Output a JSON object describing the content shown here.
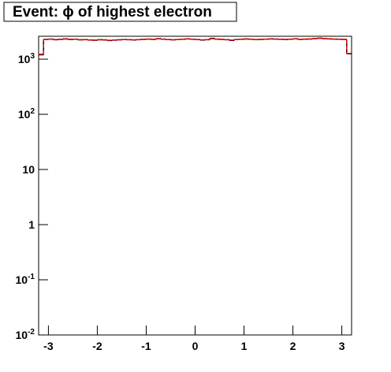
{
  "chart_data": {
    "type": "histogram",
    "title": "Event: ϕ of highest electron",
    "bins": [
      -3.2,
      -3.1,
      -3.0,
      -2.9,
      -2.8,
      -2.7,
      -2.6,
      -2.5,
      -2.4,
      -2.3,
      -2.2,
      -2.1,
      -2.0,
      -1.9,
      -1.8,
      -1.7,
      -1.6,
      -1.5,
      -1.4,
      -1.3,
      -1.2,
      -1.1,
      -1.0,
      -0.9,
      -0.8,
      -0.7,
      -0.6,
      -0.5,
      -0.4,
      -0.3,
      -0.2,
      -0.1,
      0.0,
      0.1,
      0.2,
      0.3,
      0.4,
      0.5,
      0.6,
      0.7,
      0.8,
      0.9,
      1.0,
      1.1,
      1.2,
      1.3,
      1.4,
      1.5,
      1.6,
      1.7,
      1.8,
      1.9,
      2.0,
      2.1,
      2.2,
      2.3,
      2.4,
      2.5,
      2.6,
      2.7,
      2.8,
      2.9,
      3.0,
      3.1,
      3.2
    ],
    "series": [
      {
        "color": "#000000",
        "dashed": false,
        "values": [
          1200,
          2280,
          2310,
          2250,
          2290,
          2330,
          2270,
          2300,
          2240,
          2260,
          2220,
          2200,
          2250,
          2230,
          2180,
          2210,
          2240,
          2270,
          2250,
          2230,
          2260,
          2290,
          2310,
          2280,
          2350,
          2300,
          2260,
          2240,
          2270,
          2300,
          2330,
          2290,
          2260,
          2220,
          2250,
          2380,
          2300,
          2280,
          2250,
          2190,
          2270,
          2300,
          2320,
          2290,
          2260,
          2280,
          2300,
          2330,
          2310,
          2290,
          2270,
          2300,
          2340,
          2280,
          2300,
          2320,
          2360,
          2400,
          2350,
          2330,
          2310,
          2300,
          2280,
          1250
        ]
      },
      {
        "color": "#ff0000",
        "dashed": true,
        "values": [
          1230,
          2260,
          2300,
          2270,
          2280,
          2310,
          2290,
          2290,
          2260,
          2250,
          2230,
          2220,
          2240,
          2240,
          2200,
          2220,
          2250,
          2260,
          2260,
          2240,
          2250,
          2280,
          2300,
          2290,
          2330,
          2310,
          2270,
          2250,
          2260,
          2290,
          2320,
          2300,
          2270,
          2240,
          2260,
          2340,
          2310,
          2290,
          2260,
          2220,
          2260,
          2290,
          2310,
          2300,
          2270,
          2290,
          2300,
          2320,
          2300,
          2300,
          2280,
          2290,
          2330,
          2290,
          2310,
          2310,
          2350,
          2380,
          2360,
          2320,
          2300,
          2290,
          2270,
          1270
        ]
      }
    ],
    "xlim": [
      -3.2,
      3.2
    ],
    "xticks": [
      -3,
      -2,
      -1,
      0,
      1,
      2,
      3
    ],
    "ylim": [
      0.01,
      2600
    ],
    "log_y": true,
    "yticks": [
      {
        "value": 0.01,
        "label": "10",
        "sup": "-2"
      },
      {
        "value": 0.1,
        "label": "10",
        "sup": "-1"
      },
      1,
      10,
      {
        "value": 100,
        "label": "10",
        "sup": "2"
      },
      {
        "value": 1000,
        "label": "10",
        "sup": "3"
      }
    ]
  }
}
